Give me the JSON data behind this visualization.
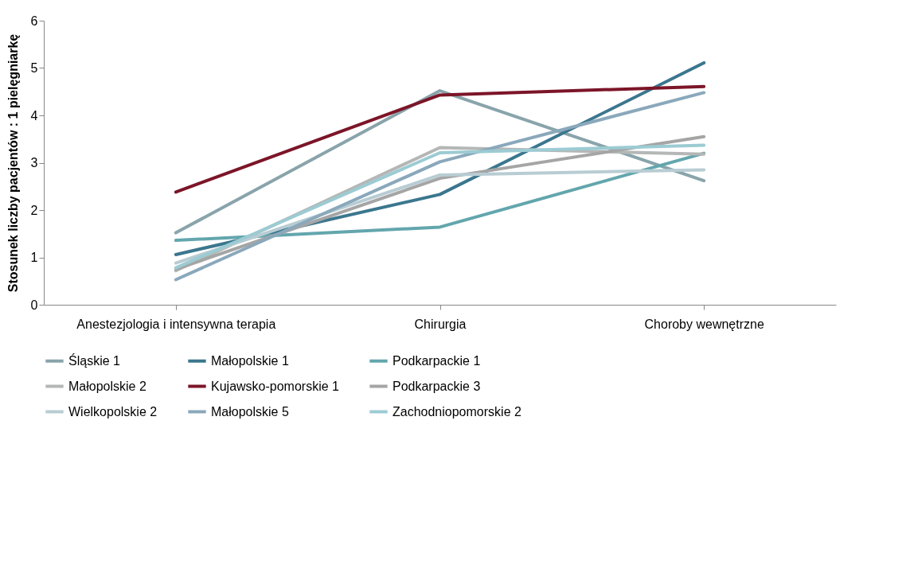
{
  "chart_data": {
    "type": "line",
    "ylabel": "Stosunek liczby pacjentów : 1 pielęgniarkę",
    "categories": [
      "Anestezjologia i intensywna terapia",
      "Chirurgia",
      "Choroby wewnętrzne"
    ],
    "ylim": [
      0,
      6
    ],
    "yticks": [
      0,
      1,
      2,
      3,
      4,
      5,
      6
    ],
    "grid": false,
    "legend": "bottom",
    "marker": "none",
    "line_style": "solid",
    "series": [
      {
        "name": "Śląskie 1",
        "color": "#89a4ab",
        "values": [
          1.52,
          4.52,
          2.62
        ]
      },
      {
        "name": "Małopolskie 1",
        "color": "#3b778e",
        "values": [
          1.06,
          2.33,
          5.11
        ]
      },
      {
        "name": "Podkarpackie 1",
        "color": "#63a6ad",
        "values": [
          1.36,
          1.64,
          3.2
        ]
      },
      {
        "name": "Małopolskie 2",
        "color": "#b4b7b6",
        "values": [
          0.72,
          3.32,
          3.18
        ]
      },
      {
        "name": "Kujawsko-pomorskie 1",
        "color": "#7c1528",
        "values": [
          2.38,
          4.43,
          4.61
        ]
      },
      {
        "name": "Podkarpackie 3",
        "color": "#a5a5a5",
        "values": [
          0.75,
          2.67,
          3.55
        ]
      },
      {
        "name": "Wielkopolskie 2",
        "color": "#b8ccd3",
        "values": [
          0.88,
          2.74,
          2.85
        ]
      },
      {
        "name": "Małopolskie 5",
        "color": "#8aa8bb",
        "values": [
          0.53,
          3.02,
          4.48
        ]
      },
      {
        "name": "Zachodniopomorskie 2",
        "color": "#9ccbd3",
        "values": [
          0.78,
          3.21,
          3.37
        ]
      }
    ]
  }
}
